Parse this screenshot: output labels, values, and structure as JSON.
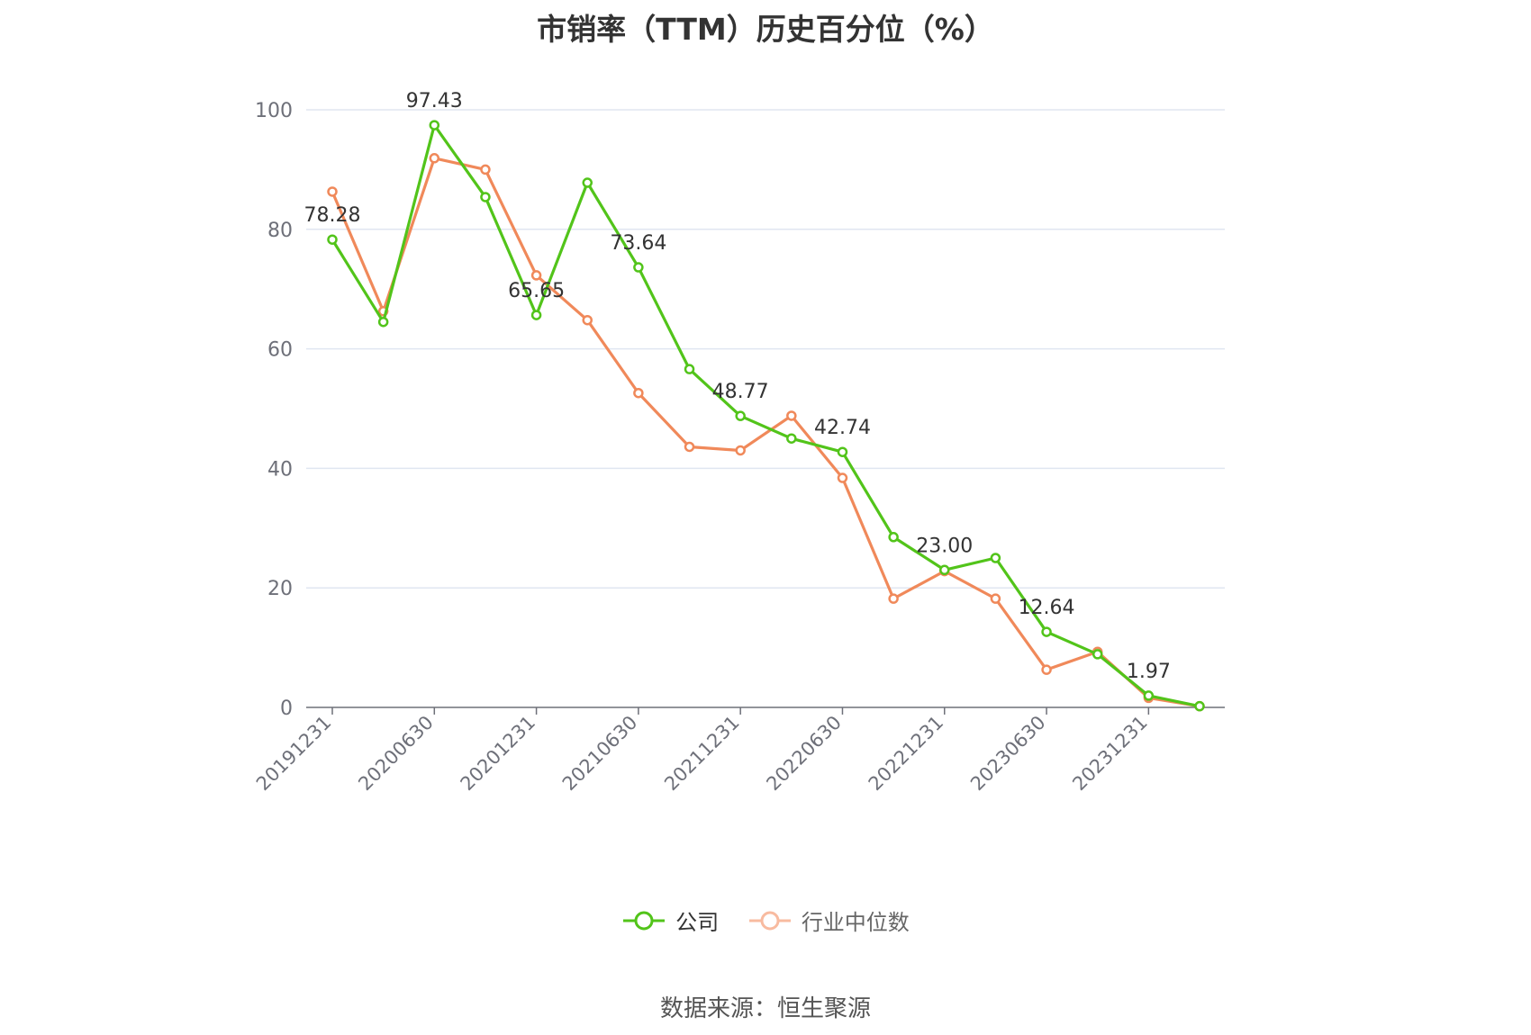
{
  "chart_data": {
    "type": "line",
    "title": "市销率（TTM）历史百分位（%）",
    "categories": [
      "20191231",
      "20200331",
      "20200630",
      "20200930",
      "20201231",
      "20210331",
      "20210630",
      "20210930",
      "20211231",
      "20220331",
      "20220630",
      "20220930",
      "20221231",
      "20230331",
      "20230630",
      "20230930",
      "20231231",
      "20240331"
    ],
    "tick_labels": [
      "20191231",
      "20200630",
      "20201231",
      "20210630",
      "20211231",
      "20220630",
      "20221231",
      "20230630",
      "20231231"
    ],
    "y_ticks": [
      "0",
      "20",
      "40",
      "60",
      "80",
      "100"
    ],
    "ylim": [
      0,
      100
    ],
    "grid": true,
    "legend_position": "bottom",
    "series": [
      {
        "name": "公司",
        "color": "#52c41a",
        "values": [
          78.28,
          64.5,
          97.43,
          85.4,
          65.65,
          87.8,
          73.64,
          56.6,
          48.77,
          45.0,
          42.74,
          28.5,
          23.0,
          25.0,
          12.64,
          8.9,
          1.97,
          0.2
        ],
        "labels": [
          "78.28",
          "",
          "97.43",
          "",
          "65.65",
          "",
          "73.64",
          "",
          "48.77",
          "",
          "42.74",
          "",
          "23.00",
          "",
          "12.64",
          "",
          "1.97",
          ""
        ]
      },
      {
        "name": "行业中位数",
        "color": "#f0895a",
        "values": [
          86.3,
          66.3,
          91.9,
          90.0,
          72.3,
          64.8,
          52.6,
          43.6,
          43.0,
          48.8,
          38.4,
          18.2,
          22.8,
          18.2,
          6.3,
          9.3,
          1.6,
          0.2
        ]
      }
    ]
  },
  "source_text": "数据来源：恒生聚源"
}
